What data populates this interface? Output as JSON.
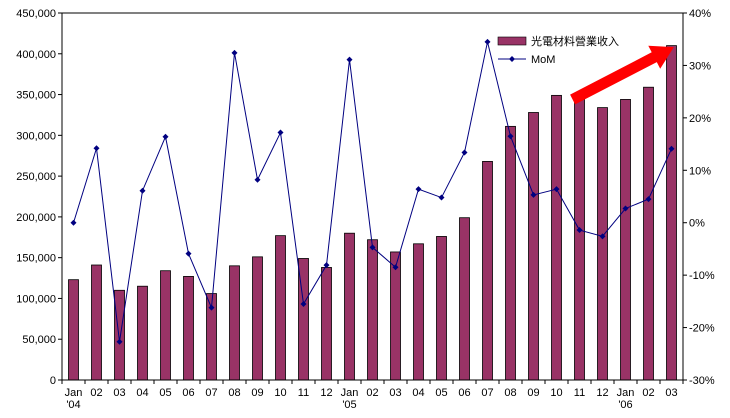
{
  "chart_data": {
    "type": "bar",
    "categories": [
      "Jan '04",
      "02",
      "03",
      "04",
      "05",
      "06",
      "07",
      "08",
      "09",
      "10",
      "11",
      "12",
      "Jan '05",
      "02",
      "03",
      "04",
      "05",
      "06",
      "07",
      "08",
      "09",
      "10",
      "11",
      "12",
      "Jan '06",
      "02",
      "03"
    ],
    "x_tick_labels": [
      [
        "Jan",
        "'04"
      ],
      [
        "02"
      ],
      [
        "03"
      ],
      [
        "04"
      ],
      [
        "05"
      ],
      [
        "06"
      ],
      [
        "07"
      ],
      [
        "08"
      ],
      [
        "09"
      ],
      [
        "10"
      ],
      [
        "11"
      ],
      [
        "12"
      ],
      [
        "Jan",
        "'05"
      ],
      [
        "02"
      ],
      [
        "03"
      ],
      [
        "04"
      ],
      [
        "05"
      ],
      [
        "06"
      ],
      [
        "07"
      ],
      [
        "08"
      ],
      [
        "09"
      ],
      [
        "10"
      ],
      [
        "11"
      ],
      [
        "12"
      ],
      [
        "Jan",
        "'06"
      ],
      [
        "02"
      ],
      [
        "03"
      ]
    ],
    "series": [
      {
        "name": "光電材料營業收入",
        "type": "bar",
        "axis": "left",
        "color": "#993366",
        "values": [
          123000,
          141000,
          110000,
          115000,
          134000,
          127000,
          106000,
          140000,
          151000,
          177000,
          149000,
          138000,
          180000,
          172000,
          157000,
          167000,
          176000,
          199000,
          268000,
          311000,
          328000,
          349000,
          344000,
          334000,
          344000,
          359000,
          410000
        ]
      },
      {
        "name": "MoM",
        "type": "line",
        "axis": "right",
        "color": "#000080",
        "values": [
          0.0,
          14.2,
          -22.7,
          6.1,
          16.4,
          -5.9,
          -16.2,
          32.4,
          8.2,
          17.2,
          -15.5,
          -8.1,
          31.1,
          -4.7,
          -8.5,
          6.4,
          4.8,
          13.4,
          34.5,
          16.5,
          5.3,
          6.4,
          -1.4,
          -2.6,
          2.7,
          4.5,
          14.1
        ]
      }
    ],
    "y_left": {
      "min": 0,
      "max": 450000,
      "step": 50000,
      "tick_labels": [
        "0",
        "50,000",
        "100,000",
        "150,000",
        "200,000",
        "250,000",
        "300,000",
        "350,000",
        "400,000",
        "450,000"
      ]
    },
    "y_right": {
      "min": -30,
      "max": 40,
      "step": 10,
      "tick_labels": [
        "-30%",
        "-20%",
        "-10%",
        "0%",
        "10%",
        "20%",
        "30%",
        "40%"
      ]
    },
    "legend_position": "top-right",
    "grid": false,
    "annotation": {
      "type": "arrow",
      "color": "#ff0000",
      "from_category": 22.2,
      "from_value": 23.5,
      "to_category": 26.6,
      "to_value": 33.5,
      "axis": "right"
    }
  }
}
